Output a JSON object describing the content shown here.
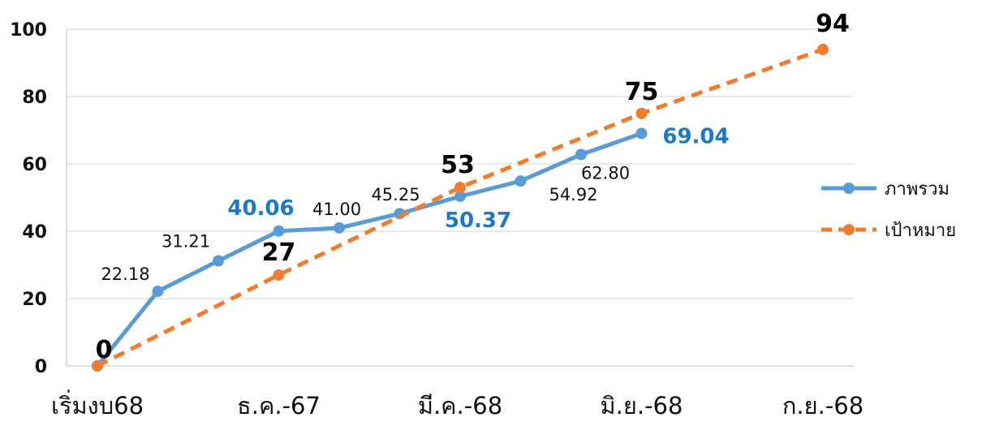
{
  "chart_data": {
    "type": "line",
    "title": "",
    "xlabel": "",
    "ylabel": "",
    "ylim": [
      0,
      100
    ],
    "yticks": [
      0,
      20,
      40,
      60,
      80,
      100
    ],
    "grid": "horizontal",
    "legend_position": "right",
    "x_tick_labels": [
      "เริ่มงบ68",
      "ธ.ค.-67",
      "มี.ค.-68",
      "มิ.ย.-68",
      "ก.ย.-68"
    ],
    "series": [
      {
        "name": "ภาพรวม",
        "color": "#5B9BD5",
        "style": "solid",
        "x": [
          0,
          1,
          2,
          3,
          4,
          5,
          6,
          7,
          8,
          9
        ],
        "values": [
          0,
          22.18,
          31.21,
          40.06,
          41.0,
          45.25,
          50.37,
          54.92,
          62.8,
          69.04
        ],
        "labels": [
          "",
          "22.18",
          "31.21",
          "40.06",
          "41.00",
          "45.25",
          "50.37",
          "54.92",
          "62.80",
          "69.04"
        ]
      },
      {
        "name": "เป้าหมาย",
        "color": "#ED7D31",
        "style": "dashed",
        "x": [
          0,
          3,
          6,
          9,
          12
        ],
        "values": [
          0,
          27,
          53,
          75,
          94
        ],
        "labels": [
          "0",
          "27",
          "53",
          "75",
          "94"
        ]
      }
    ]
  }
}
